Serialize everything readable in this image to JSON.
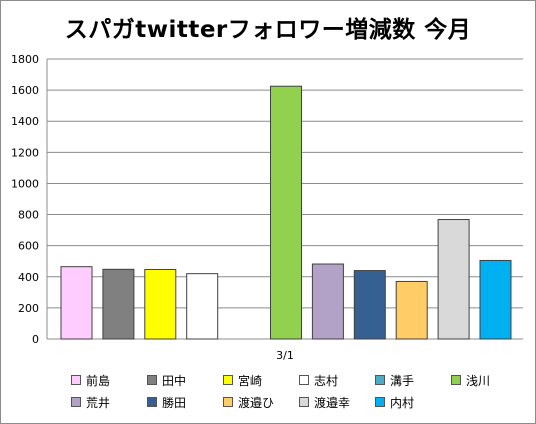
{
  "chart_data": {
    "type": "bar",
    "title": "スパガtwitterフォロワー増減数 今月",
    "categories": [
      "3/1"
    ],
    "ylim": [
      0,
      1800
    ],
    "yticks": [
      0,
      200,
      400,
      600,
      800,
      1000,
      1200,
      1400,
      1600,
      1800
    ],
    "grid": true,
    "legend_position": "bottom",
    "series": [
      {
        "name": "前島",
        "values": [
          465
        ],
        "color": "#ffccff"
      },
      {
        "name": "田中",
        "values": [
          448
        ],
        "color": "#808080"
      },
      {
        "name": "宮崎",
        "values": [
          447
        ],
        "color": "#ffff00"
      },
      {
        "name": "志村",
        "values": [
          420
        ],
        "color": "#ffffff"
      },
      {
        "name": "溝手",
        "values": [
          0
        ],
        "color": "#4bacc6"
      },
      {
        "name": "浅川",
        "values": [
          1625
        ],
        "color": "#92d050"
      },
      {
        "name": "荒井",
        "values": [
          482
        ],
        "color": "#b3a2c7"
      },
      {
        "name": "勝田",
        "values": [
          440
        ],
        "color": "#376092"
      },
      {
        "name": "渡邉ひ",
        "values": [
          370
        ],
        "color": "#ffcc66"
      },
      {
        "name": "渡邉幸",
        "values": [
          768
        ],
        "color": "#d9d9d9"
      },
      {
        "name": "内村",
        "values": [
          505
        ],
        "color": "#00b0f0"
      }
    ]
  }
}
